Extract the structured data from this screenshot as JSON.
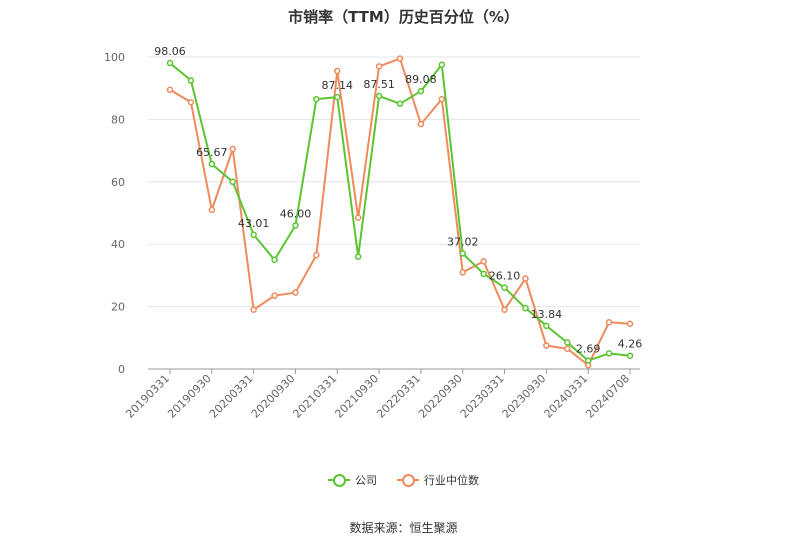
{
  "title": "市销率（TTM）历史百分位（%）",
  "source": "数据来源：恒生聚源",
  "legend": {
    "company": "公司",
    "industry": "行业中位数"
  },
  "colors": {
    "company": "#5ac531",
    "industry": "#f08a5d",
    "grid": "#e6e6e6",
    "axis": "#999999"
  },
  "chart_data": {
    "type": "line",
    "title": "市销率（TTM）历史百分位（%）",
    "ylim": [
      0,
      100
    ],
    "yticks": [
      0,
      20,
      40,
      60,
      80,
      100
    ],
    "xtick_labels": [
      "20190331",
      "20190930",
      "20200331",
      "20200930",
      "20210331",
      "20210930",
      "20220331",
      "20220930",
      "20230331",
      "20230930",
      "20240331",
      "20240708"
    ],
    "legend_position": "bottom",
    "grid": true,
    "series": [
      {
        "name": "公司",
        "values": [
          98.06,
          92.5,
          65.67,
          60.0,
          43.01,
          35.0,
          46.0,
          86.5,
          87.14,
          36.0,
          87.51,
          85.0,
          89.08,
          97.5,
          37.02,
          30.5,
          26.1,
          19.5,
          13.84,
          8.5,
          2.69,
          5.0,
          4.26
        ],
        "labels": {
          "0": "98.06",
          "2": "65.67",
          "4": "43.01",
          "6": "46.00",
          "8": "87.14",
          "10": "87.51",
          "12": "89.08",
          "14": "37.02",
          "16": "26.10",
          "18": "13.84",
          "20": "2.69",
          "22": "4.26"
        }
      },
      {
        "name": "行业中位数",
        "values": [
          89.5,
          85.5,
          51.0,
          70.5,
          19.0,
          23.5,
          24.5,
          36.5,
          95.5,
          48.5,
          97.0,
          99.5,
          78.5,
          86.5,
          31.0,
          34.5,
          19.0,
          29.0,
          7.5,
          6.5,
          1.2,
          15.0,
          14.5
        ]
      }
    ]
  }
}
